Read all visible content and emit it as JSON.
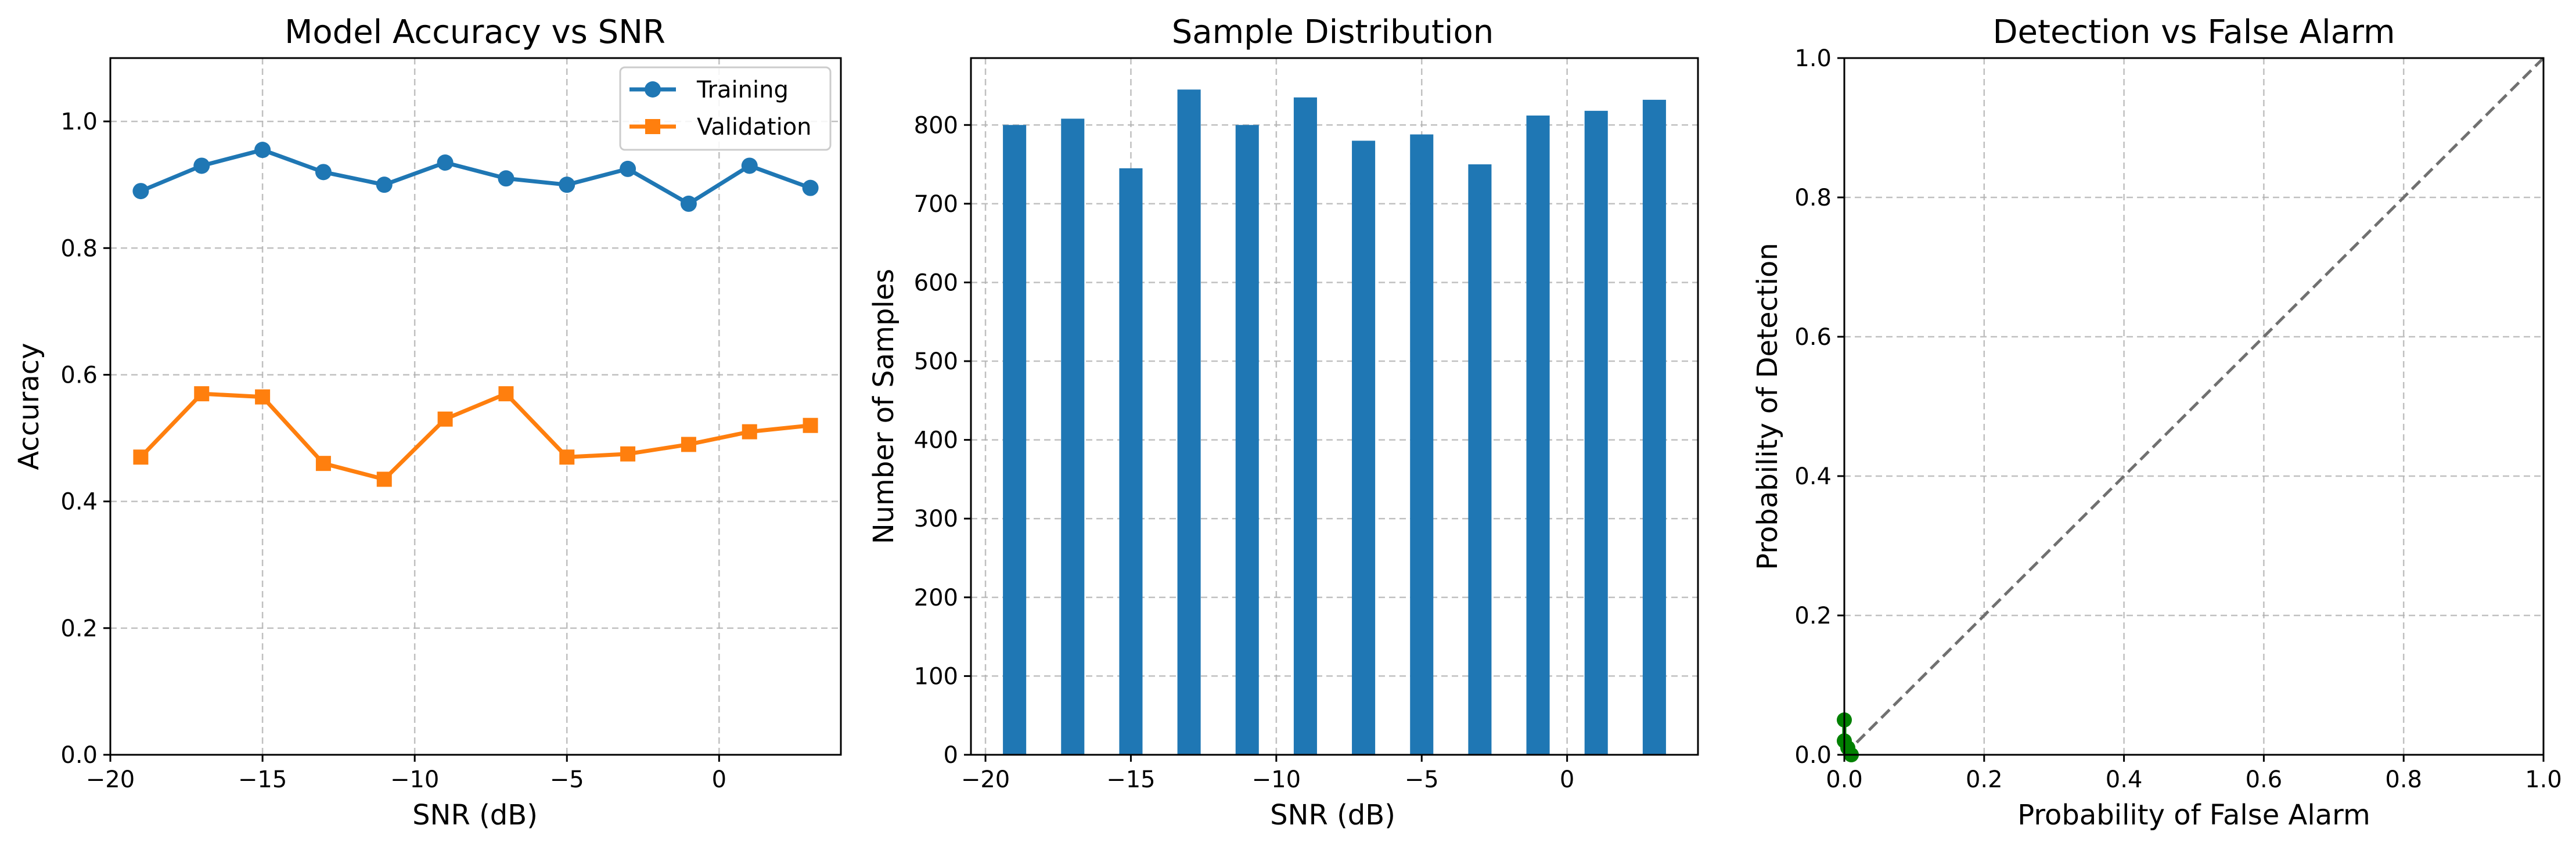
{
  "colors": {
    "training": "#1f77b4",
    "validation": "#ff7f0e",
    "bars": "#1f77b4",
    "roc": "#008000",
    "diagonal": "#707070",
    "grid": "#b0b0b0"
  },
  "chart_data": [
    {
      "type": "line",
      "title": "Model Accuracy vs SNR",
      "xlabel": "SNR (dB)",
      "ylabel": "Accuracy",
      "xlim": [
        -20,
        4
      ],
      "ylim": [
        0,
        1.1
      ],
      "grid": true,
      "legend": "top-right",
      "x": [
        -19,
        -17,
        -15,
        -13,
        -11,
        -9,
        -7,
        -5,
        -3,
        -1,
        1,
        3
      ],
      "xticks": [
        -20,
        -15,
        -10,
        -5,
        0
      ],
      "xtick_labels": [
        "−20",
        "−15",
        "−10",
        "−5",
        "0"
      ],
      "yticks": [
        0,
        0.2,
        0.4,
        0.6,
        0.8,
        1.0
      ],
      "ytick_labels": [
        "0.0",
        "0.2",
        "0.4",
        "0.6",
        "0.8",
        "1.0"
      ],
      "series": [
        {
          "name": "Training",
          "marker": "circle",
          "values": [
            0.89,
            0.93,
            0.955,
            0.92,
            0.9,
            0.935,
            0.91,
            0.9,
            0.925,
            0.87,
            0.93,
            0.895
          ]
        },
        {
          "name": "Validation",
          "marker": "square",
          "values": [
            0.47,
            0.57,
            0.565,
            0.46,
            0.435,
            0.53,
            0.57,
            0.47,
            0.475,
            0.49,
            0.51,
            0.52
          ]
        }
      ]
    },
    {
      "type": "bar",
      "title": "Sample Distribution",
      "xlabel": "SNR (dB)",
      "ylabel": "Number of Samples",
      "xlim": [
        -20.5,
        4.5
      ],
      "ylim": [
        0,
        885
      ],
      "grid": true,
      "categories": [
        -19,
        -17,
        -15,
        -13,
        -11,
        -9,
        -7,
        -5,
        -3,
        -1,
        1,
        3
      ],
      "values": [
        800,
        808,
        745,
        845,
        800,
        835,
        780,
        788,
        750,
        812,
        818,
        832
      ],
      "xticks": [
        -20,
        -15,
        -10,
        -5,
        0
      ],
      "xtick_labels": [
        "−20",
        "−15",
        "−10",
        "−5",
        "0"
      ],
      "yticks": [
        0,
        100,
        200,
        300,
        400,
        500,
        600,
        700,
        800
      ],
      "ytick_labels": [
        "0",
        "100",
        "200",
        "300",
        "400",
        "500",
        "600",
        "700",
        "800"
      ]
    },
    {
      "type": "line",
      "title": "Detection vs False Alarm",
      "xlabel": "Probability of False Alarm",
      "ylabel": "Probability of Detection",
      "xlim": [
        0,
        1
      ],
      "ylim": [
        0,
        1
      ],
      "grid": true,
      "x": [
        0,
        0,
        0.005,
        0.01
      ],
      "y": [
        0.05,
        0.02,
        0.01,
        0
      ],
      "diagonal": true,
      "xticks": [
        0,
        0.2,
        0.4,
        0.6,
        0.8,
        1.0
      ],
      "xtick_labels": [
        "0.0",
        "0.2",
        "0.4",
        "0.6",
        "0.8",
        "1.0"
      ],
      "yticks": [
        0,
        0.2,
        0.4,
        0.6,
        0.8,
        1.0
      ],
      "ytick_labels": [
        "0.0",
        "0.2",
        "0.4",
        "0.6",
        "0.8",
        "1.0"
      ]
    }
  ]
}
